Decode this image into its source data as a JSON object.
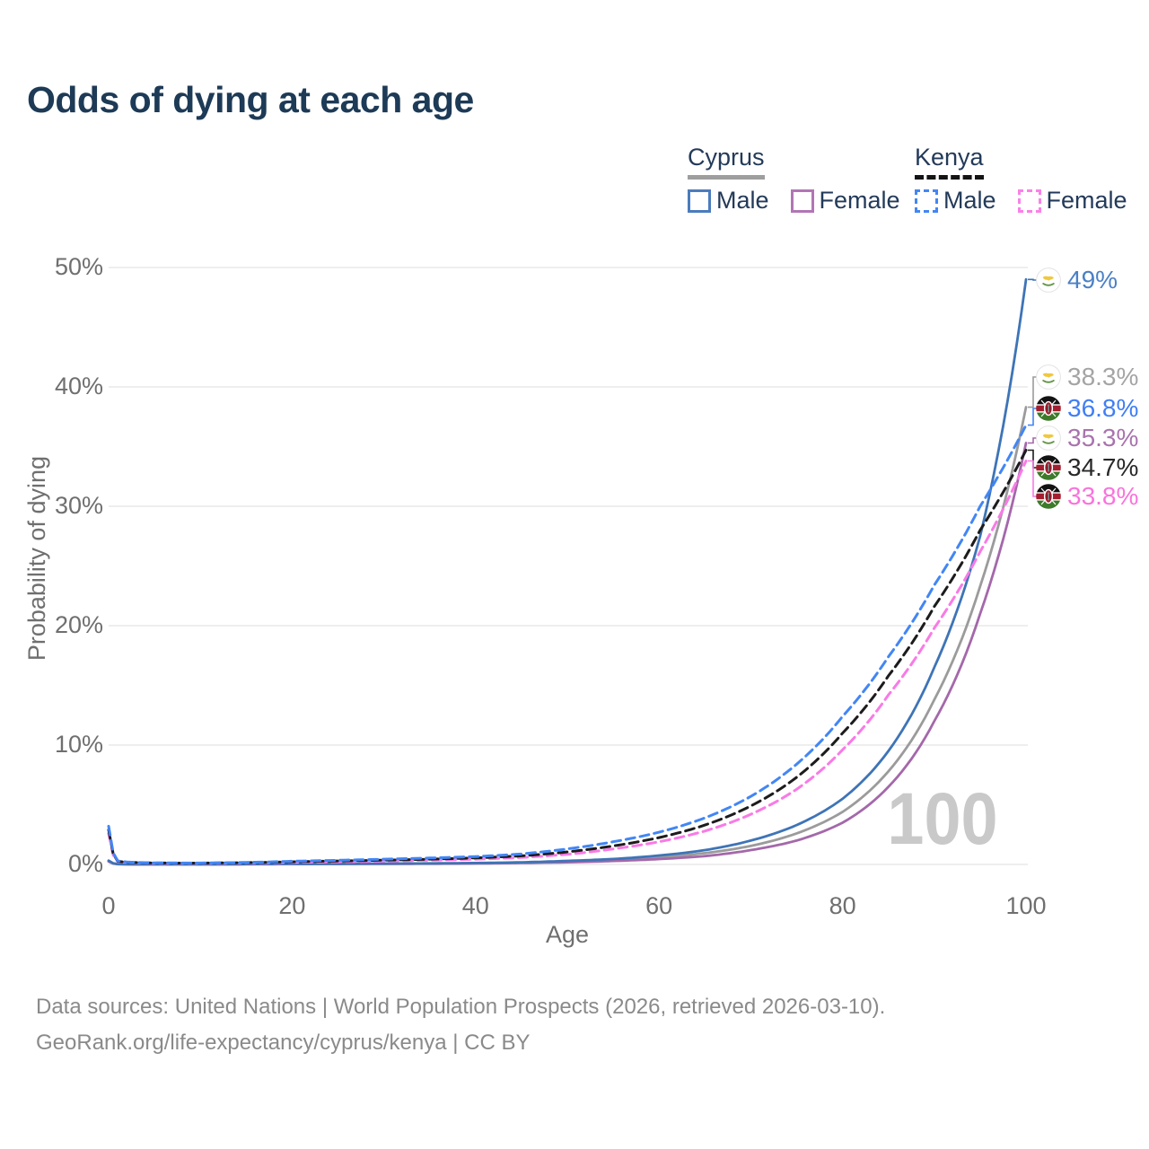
{
  "title": "Odds of dying at each age",
  "watermark": "100",
  "legend": {
    "cyprus": {
      "title": "Cyprus",
      "items": [
        {
          "label": "Male"
        },
        {
          "label": "Female"
        }
      ]
    },
    "kenya": {
      "title": "Kenya",
      "items": [
        {
          "label": "Male"
        },
        {
          "label": "Female"
        }
      ]
    }
  },
  "footer": {
    "line1": "Data sources: United Nations | World Population Prospects (2026, retrieved 2026-03-10).",
    "line2": "GeoRank.org/life-expectancy/cyprus/kenya | CC BY"
  },
  "chart_data": {
    "type": "line",
    "title": "Odds of dying at each age",
    "xlabel": "Age",
    "ylabel": "Probability of dying",
    "xlim": [
      0,
      100
    ],
    "ylim": [
      0,
      50
    ],
    "y_unit": "%",
    "grid": "horizontal-only",
    "legend_position": "top-right",
    "x_ticks": [
      {
        "v": 0,
        "label": "0"
      },
      {
        "v": 20,
        "label": "20"
      },
      {
        "v": 40,
        "label": "40"
      },
      {
        "v": 60,
        "label": "60"
      },
      {
        "v": 80,
        "label": "80"
      },
      {
        "v": 100,
        "label": "100"
      }
    ],
    "y_ticks": [
      {
        "v": 0,
        "label": "0%"
      },
      {
        "v": 10,
        "label": "10%"
      },
      {
        "v": 20,
        "label": "20%"
      },
      {
        "v": 30,
        "label": "30%"
      },
      {
        "v": 40,
        "label": "40%"
      },
      {
        "v": 50,
        "label": "50%"
      }
    ],
    "ages": [
      0,
      1,
      2,
      5,
      10,
      15,
      20,
      25,
      30,
      35,
      40,
      45,
      50,
      55,
      60,
      65,
      70,
      75,
      80,
      85,
      90,
      95,
      100
    ],
    "series": [
      {
        "id": "cyprus_male",
        "name": "Cyprus Male",
        "country": "Cyprus",
        "sex": "Male",
        "flag": "cyprus",
        "dashed": false,
        "color": "#3e74b7",
        "label_color": "#4a80c6",
        "end_label": "49%",
        "end_value": 49.0,
        "values": [
          0.32,
          0.03,
          0.02,
          0.012,
          0.012,
          0.03,
          0.05,
          0.06,
          0.07,
          0.09,
          0.12,
          0.18,
          0.3,
          0.46,
          0.75,
          1.2,
          2.0,
          3.3,
          5.5,
          9.5,
          16.5,
          27.5,
          49.0
        ]
      },
      {
        "id": "cyprus_both",
        "name": "Cyprus Both sexes",
        "country": "Cyprus",
        "sex": "Both",
        "flag": "cyprus",
        "dashed": false,
        "color": "#9b9b9b",
        "label_color": "#a4a4a4",
        "end_label": "38.3%",
        "end_value": 38.3,
        "values": [
          0.28,
          0.027,
          0.018,
          0.011,
          0.011,
          0.025,
          0.04,
          0.05,
          0.06,
          0.075,
          0.1,
          0.15,
          0.24,
          0.37,
          0.6,
          0.95,
          1.55,
          2.6,
          4.4,
          7.8,
          13.8,
          23.3,
          38.3
        ]
      },
      {
        "id": "cyprus_female",
        "name": "Cyprus Female",
        "country": "Cyprus",
        "sex": "Female",
        "flag": "cyprus",
        "dashed": false,
        "color": "#a468aa",
        "label_color": "#a973ae",
        "end_label": "35.3%",
        "end_value": 35.3,
        "values": [
          0.25,
          0.024,
          0.016,
          0.01,
          0.01,
          0.02,
          0.03,
          0.04,
          0.05,
          0.06,
          0.08,
          0.12,
          0.18,
          0.29,
          0.45,
          0.7,
          1.2,
          2.0,
          3.5,
          6.5,
          12.0,
          21.0,
          35.3
        ]
      },
      {
        "id": "kenya_male",
        "name": "Kenya Male",
        "country": "Kenya",
        "sex": "Male",
        "flag": "kenya",
        "dashed": true,
        "color": "#4286f5",
        "label_color": "#3f7ef5",
        "end_label": "36.8%",
        "end_value": 36.8,
        "values": [
          3.2,
          0.3,
          0.2,
          0.13,
          0.12,
          0.17,
          0.27,
          0.35,
          0.44,
          0.54,
          0.66,
          0.88,
          1.3,
          1.9,
          2.7,
          3.9,
          5.7,
          8.4,
          12.4,
          17.4,
          23.4,
          30.0,
          36.8
        ]
      },
      {
        "id": "kenya_both",
        "name": "Kenya Both sexes",
        "country": "Kenya",
        "sex": "Both",
        "flag": "kenya",
        "dashed": true,
        "color": "#1c1c1c",
        "label_color": "#282828",
        "end_label": "34.7%",
        "end_value": 34.7,
        "values": [
          2.9,
          0.27,
          0.18,
          0.12,
          0.11,
          0.15,
          0.22,
          0.29,
          0.36,
          0.44,
          0.55,
          0.72,
          1.05,
          1.55,
          2.25,
          3.3,
          4.9,
          7.3,
          11.0,
          15.8,
          21.6,
          28.0,
          34.7
        ]
      },
      {
        "id": "kenya_female",
        "name": "Kenya Female",
        "country": "Kenya",
        "sex": "Female",
        "flag": "kenya",
        "dashed": true,
        "color": "#f97ae6",
        "label_color": "#f973dc",
        "end_label": "33.8%",
        "end_value": 33.8,
        "values": [
          2.6,
          0.24,
          0.16,
          0.1,
          0.09,
          0.12,
          0.17,
          0.22,
          0.28,
          0.35,
          0.44,
          0.58,
          0.85,
          1.3,
          1.9,
          2.8,
          4.2,
          6.3,
          9.6,
          14.2,
          19.8,
          26.2,
          33.8
        ]
      }
    ]
  }
}
